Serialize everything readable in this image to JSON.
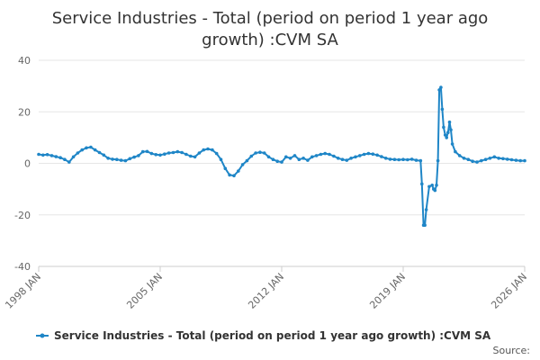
{
  "colors": {
    "series": "#1f86c7",
    "grid": "#e6e6e6",
    "axis": "#cccccc"
  },
  "chart_data": {
    "type": "line",
    "title_lines": [
      "Service Industries - Total (period on period 1 year ago",
      "growth) :CVM SA"
    ],
    "xlabel": "",
    "ylabel": "",
    "xlim": [
      1998.0,
      2026.0
    ],
    "ylim": [
      -40,
      40
    ],
    "y_ticks": [
      -40,
      -20,
      0,
      20,
      40
    ],
    "x_ticks": [
      {
        "value": 1998.0,
        "label": "1998 JAN"
      },
      {
        "value": 2005.0,
        "label": "2005 JAN"
      },
      {
        "value": 2012.0,
        "label": "2012 JAN"
      },
      {
        "value": 2019.0,
        "label": "2019 JAN"
      },
      {
        "value": 2026.0,
        "label": "2026 JAN"
      }
    ],
    "grid": true,
    "legend": {
      "position": "bottom",
      "label": "Service Industries - Total (period on period 1 year ago growth) :CVM SA"
    },
    "source_label": "Source:",
    "series": [
      {
        "name": "Service Industries - Total (period on period 1 year ago growth) :CVM SA",
        "points": [
          [
            1998.0,
            3.5
          ],
          [
            1998.25,
            3.2
          ],
          [
            1998.5,
            3.4
          ],
          [
            1998.75,
            3.0
          ],
          [
            1999.0,
            2.6
          ],
          [
            1999.25,
            2.2
          ],
          [
            1999.5,
            1.5
          ],
          [
            1999.75,
            0.5
          ],
          [
            2000.0,
            2.5
          ],
          [
            2000.25,
            4.0
          ],
          [
            2000.5,
            5.2
          ],
          [
            2000.75,
            6.0
          ],
          [
            2001.0,
            6.3
          ],
          [
            2001.25,
            5.2
          ],
          [
            2001.5,
            4.2
          ],
          [
            2001.75,
            3.2
          ],
          [
            2002.0,
            2.0
          ],
          [
            2002.25,
            1.6
          ],
          [
            2002.5,
            1.5
          ],
          [
            2002.75,
            1.2
          ],
          [
            2003.0,
            1.0
          ],
          [
            2003.25,
            1.8
          ],
          [
            2003.5,
            2.4
          ],
          [
            2003.75,
            3.0
          ],
          [
            2004.0,
            4.5
          ],
          [
            2004.25,
            4.6
          ],
          [
            2004.5,
            3.8
          ],
          [
            2004.75,
            3.4
          ],
          [
            2005.0,
            3.2
          ],
          [
            2005.25,
            3.6
          ],
          [
            2005.5,
            4.0
          ],
          [
            2005.75,
            4.2
          ],
          [
            2006.0,
            4.5
          ],
          [
            2006.25,
            4.2
          ],
          [
            2006.5,
            3.5
          ],
          [
            2006.75,
            2.8
          ],
          [
            2007.0,
            2.5
          ],
          [
            2007.25,
            4.0
          ],
          [
            2007.5,
            5.2
          ],
          [
            2007.75,
            5.6
          ],
          [
            2008.0,
            5.2
          ],
          [
            2008.25,
            3.8
          ],
          [
            2008.5,
            1.5
          ],
          [
            2008.75,
            -2.0
          ],
          [
            2009.0,
            -4.5
          ],
          [
            2009.25,
            -4.8
          ],
          [
            2009.5,
            -3.0
          ],
          [
            2009.75,
            -0.5
          ],
          [
            2010.0,
            1.0
          ],
          [
            2010.25,
            2.8
          ],
          [
            2010.5,
            4.0
          ],
          [
            2010.75,
            4.3
          ],
          [
            2011.0,
            4.0
          ],
          [
            2011.25,
            2.5
          ],
          [
            2011.5,
            1.5
          ],
          [
            2011.75,
            0.8
          ],
          [
            2012.0,
            0.5
          ],
          [
            2012.25,
            2.5
          ],
          [
            2012.5,
            2.0
          ],
          [
            2012.75,
            3.0
          ],
          [
            2013.0,
            1.5
          ],
          [
            2013.25,
            2.0
          ],
          [
            2013.5,
            1.2
          ],
          [
            2013.75,
            2.5
          ],
          [
            2014.0,
            3.0
          ],
          [
            2014.25,
            3.5
          ],
          [
            2014.5,
            3.8
          ],
          [
            2014.75,
            3.5
          ],
          [
            2015.0,
            2.8
          ],
          [
            2015.25,
            2.0
          ],
          [
            2015.5,
            1.5
          ],
          [
            2015.75,
            1.2
          ],
          [
            2016.0,
            2.0
          ],
          [
            2016.25,
            2.5
          ],
          [
            2016.5,
            3.0
          ],
          [
            2016.75,
            3.5
          ],
          [
            2017.0,
            3.8
          ],
          [
            2017.25,
            3.6
          ],
          [
            2017.5,
            3.2
          ],
          [
            2017.75,
            2.6
          ],
          [
            2018.0,
            2.0
          ],
          [
            2018.25,
            1.6
          ],
          [
            2018.5,
            1.5
          ],
          [
            2018.75,
            1.4
          ],
          [
            2019.0,
            1.5
          ],
          [
            2019.25,
            1.4
          ],
          [
            2019.5,
            1.6
          ],
          [
            2019.75,
            1.2
          ],
          [
            2020.0,
            1.0
          ],
          [
            2020.08,
            -8.0
          ],
          [
            2020.17,
            -24.0
          ],
          [
            2020.25,
            -24.0
          ],
          [
            2020.33,
            -18.0
          ],
          [
            2020.5,
            -9.0
          ],
          [
            2020.67,
            -8.5
          ],
          [
            2020.75,
            -10.0
          ],
          [
            2020.83,
            -10.5
          ],
          [
            2020.92,
            -8.5
          ],
          [
            2021.0,
            1.0
          ],
          [
            2021.08,
            28.5
          ],
          [
            2021.17,
            29.5
          ],
          [
            2021.25,
            21.0
          ],
          [
            2021.33,
            14.0
          ],
          [
            2021.42,
            11.0
          ],
          [
            2021.5,
            10.0
          ],
          [
            2021.58,
            12.0
          ],
          [
            2021.67,
            16.0
          ],
          [
            2021.75,
            13.0
          ],
          [
            2021.83,
            7.5
          ],
          [
            2022.0,
            4.5
          ],
          [
            2022.25,
            3.0
          ],
          [
            2022.5,
            2.0
          ],
          [
            2022.75,
            1.5
          ],
          [
            2023.0,
            0.8
          ],
          [
            2023.25,
            0.5
          ],
          [
            2023.5,
            1.0
          ],
          [
            2023.75,
            1.5
          ],
          [
            2024.0,
            2.0
          ],
          [
            2024.25,
            2.5
          ],
          [
            2024.5,
            2.0
          ],
          [
            2024.75,
            1.8
          ],
          [
            2025.0,
            1.6
          ],
          [
            2025.25,
            1.4
          ],
          [
            2025.5,
            1.2
          ],
          [
            2025.75,
            1.0
          ],
          [
            2026.0,
            1.0
          ]
        ]
      }
    ]
  }
}
